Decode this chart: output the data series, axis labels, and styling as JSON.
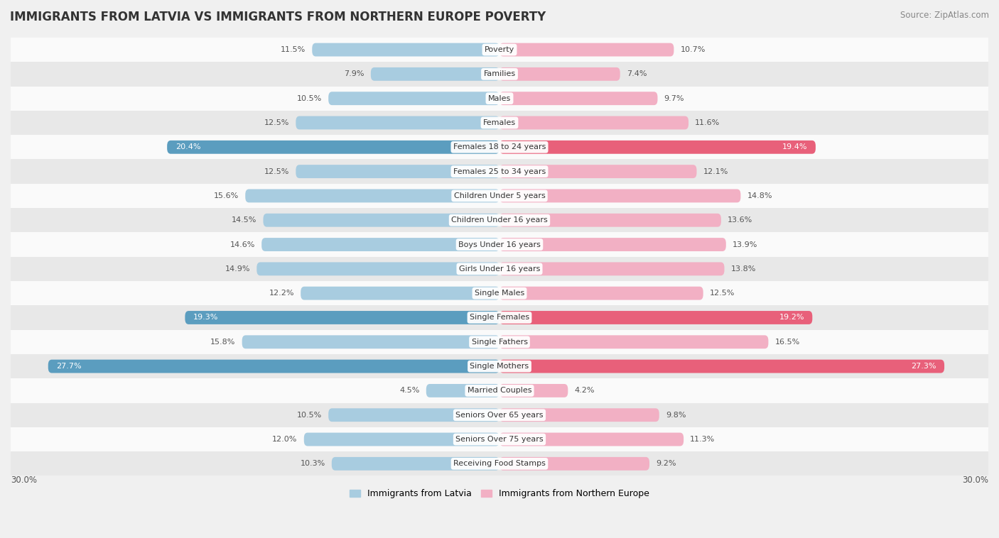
{
  "title": "IMMIGRANTS FROM LATVIA VS IMMIGRANTS FROM NORTHERN EUROPE POVERTY",
  "source": "Source: ZipAtlas.com",
  "categories": [
    "Poverty",
    "Families",
    "Males",
    "Females",
    "Females 18 to 24 years",
    "Females 25 to 34 years",
    "Children Under 5 years",
    "Children Under 16 years",
    "Boys Under 16 years",
    "Girls Under 16 years",
    "Single Males",
    "Single Females",
    "Single Fathers",
    "Single Mothers",
    "Married Couples",
    "Seniors Over 65 years",
    "Seniors Over 75 years",
    "Receiving Food Stamps"
  ],
  "latvia_values": [
    11.5,
    7.9,
    10.5,
    12.5,
    20.4,
    12.5,
    15.6,
    14.5,
    14.6,
    14.9,
    12.2,
    19.3,
    15.8,
    27.7,
    4.5,
    10.5,
    12.0,
    10.3
  ],
  "northern_values": [
    10.7,
    7.4,
    9.7,
    11.6,
    19.4,
    12.1,
    14.8,
    13.6,
    13.9,
    13.8,
    12.5,
    19.2,
    16.5,
    27.3,
    4.2,
    9.8,
    11.3,
    9.2
  ],
  "latvia_color_normal": "#a8cce0",
  "northern_color_normal": "#f2b0c4",
  "latvia_color_highlight": "#5b9dbf",
  "northern_color_highlight": "#e8607a",
  "highlight_rows": [
    4,
    11,
    13
  ],
  "xlim": 30.0,
  "bg_color": "#f0f0f0",
  "row_color_light": "#fafafa",
  "row_color_dark": "#e8e8e8",
  "title_fontsize": 12,
  "source_fontsize": 8.5,
  "bar_label_fontsize": 8,
  "category_fontsize": 8,
  "legend_fontsize": 9
}
